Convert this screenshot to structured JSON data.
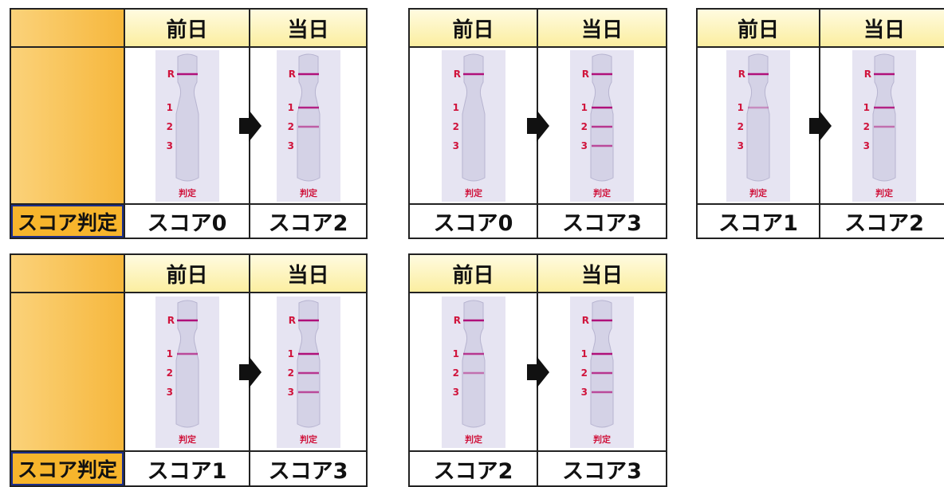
{
  "strip_labels": {
    "r": "R",
    "marks": [
      "1",
      "2",
      "3"
    ],
    "result": "判定"
  },
  "panels": [
    {
      "label": "スコア判定",
      "days": [
        {
          "day": "前日",
          "score": "スコア0"
        },
        {
          "day": "当日",
          "score": "スコア2"
        }
      ]
    },
    {
      "days": [
        {
          "day": "前日",
          "score": "スコア0"
        },
        {
          "day": "当日",
          "score": "スコア3"
        }
      ]
    },
    {
      "days": [
        {
          "day": "前日",
          "score": "スコア1"
        },
        {
          "day": "当日",
          "score": "スコア2"
        }
      ]
    },
    {
      "label": "スコア判定",
      "days": [
        {
          "day": "前日",
          "score": "スコア1"
        },
        {
          "day": "当日",
          "score": "スコア3"
        }
      ]
    },
    {
      "days": [
        {
          "day": "前日",
          "score": "スコア2"
        },
        {
          "day": "当日",
          "score": "スコア3"
        }
      ]
    }
  ]
}
